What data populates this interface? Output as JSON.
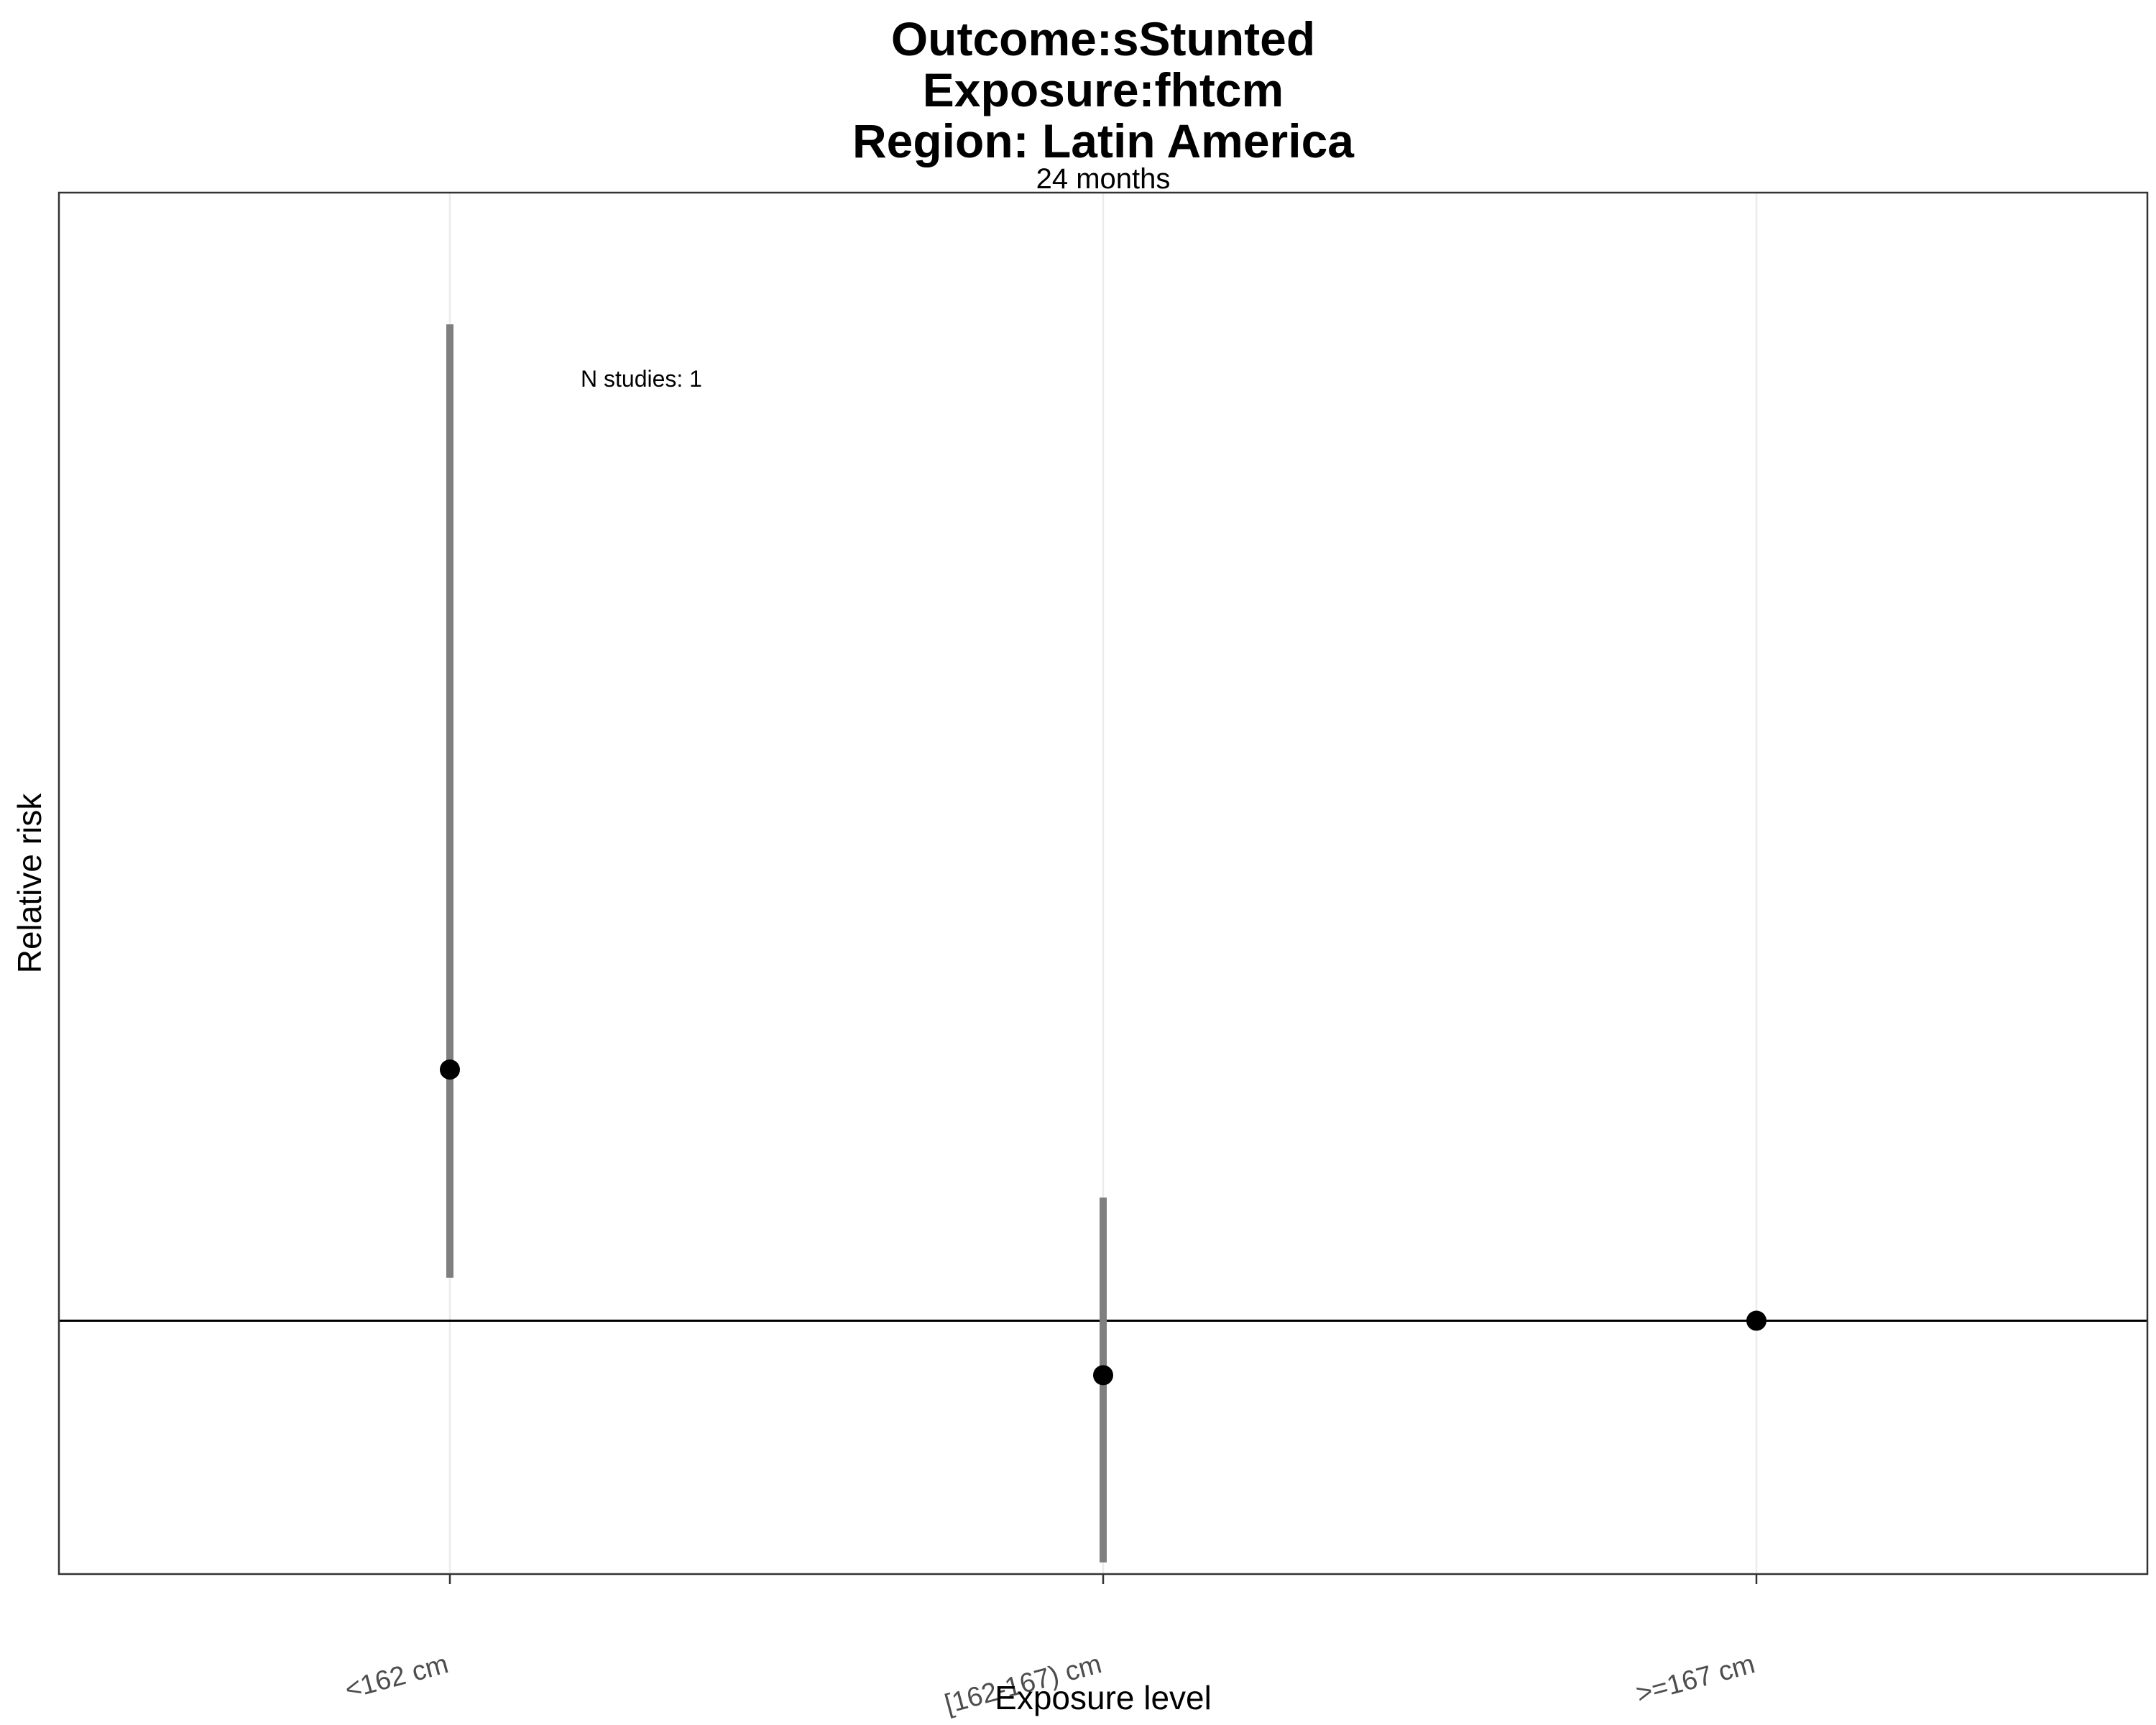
{
  "chart_data": {
    "type": "scatter",
    "title": [
      "Outcome:sStunted",
      "Exposure:fhtcm",
      "Region: Latin America"
    ],
    "subtitle": "24 months",
    "xlabel": "Exposure level",
    "ylabel": "Relative risk",
    "categories": [
      "<162 cm",
      "[162-167) cm",
      ">=167 cm"
    ],
    "points": [
      {
        "category": "<162 cm",
        "estimate": 1.33,
        "ci_lower": 1.05,
        "ci_upper": 3.1
      },
      {
        "category": "[162-167) cm",
        "estimate": 0.94,
        "ci_lower": 0.76,
        "ci_upper": 1.15
      },
      {
        "category": ">=167 cm",
        "estimate": 1.0,
        "ci_lower": null,
        "ci_upper": null
      }
    ],
    "reference_line": 1,
    "y_scale": "log",
    "ylim": [
      0.75,
      3.6
    ],
    "y_ticks_shown": false,
    "grid": true,
    "annotation": "N studies: 1",
    "colors": {
      "point": "#000000",
      "ci": "#7f7f7f",
      "grid": "#ebebeb",
      "reference": "#000000",
      "panel_border": "#333333"
    }
  }
}
